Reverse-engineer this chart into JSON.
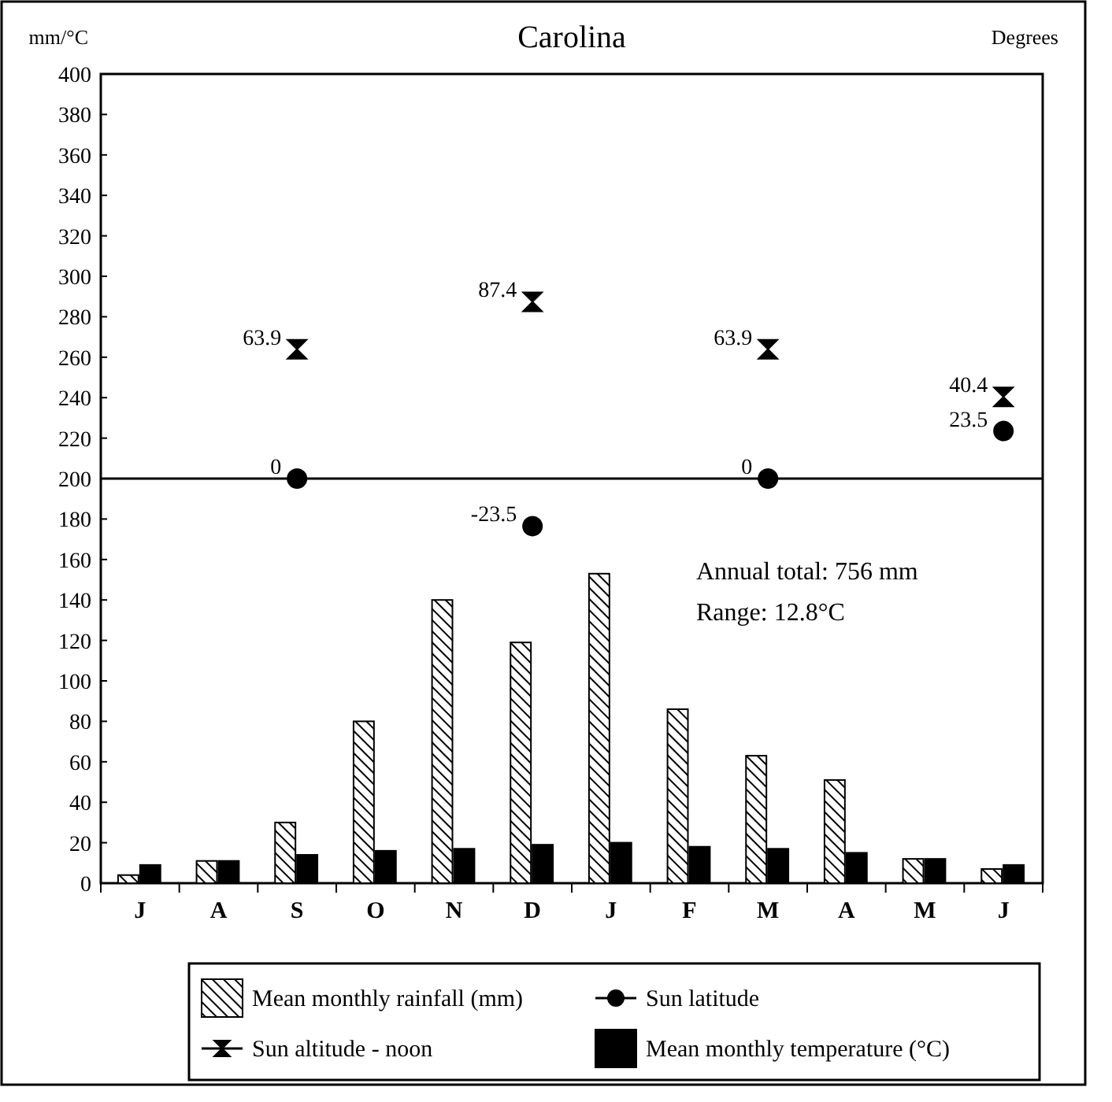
{
  "chart_data": {
    "type": "bar",
    "title": "Carolina",
    "ylabel": "mm/°C",
    "y2label": "Degrees",
    "categories": [
      "J",
      "A",
      "S",
      "O",
      "N",
      "D",
      "J",
      "F",
      "M",
      "A",
      "M",
      "J"
    ],
    "series": [
      {
        "name": "Mean monthly rainfall (mm)",
        "color": "#000000",
        "values": [
          4,
          11,
          30,
          80,
          140,
          119,
          153,
          86,
          63,
          51,
          12,
          7
        ]
      },
      {
        "name": "Sun latitude",
        "type": "scatter",
        "axis": "y2",
        "marker": "circle",
        "color": "#000000",
        "values": [
          null,
          null,
          0,
          null,
          null,
          -23.5,
          null,
          null,
          0,
          null,
          null,
          23.5
        ],
        "value_labels": [
          null,
          null,
          "0",
          null,
          null,
          "-23.5",
          null,
          null,
          "0",
          null,
          null,
          "23.5"
        ]
      },
      {
        "name": "Sun altitude - noon",
        "type": "scatter",
        "axis": "y2",
        "marker": "diamond",
        "color": "#000000",
        "values": [
          null,
          null,
          63.9,
          null,
          null,
          87.4,
          null,
          null,
          63.9,
          null,
          null,
          40.4
        ],
        "value_labels": [
          null,
          null,
          "63.9",
          null,
          null,
          "87.4",
          null,
          null,
          "63.9",
          null,
          null,
          "40.4"
        ]
      },
      {
        "name": "Mean monthly temperature (°C)",
        "color": "#000000",
        "values": [
          9,
          11,
          14,
          16,
          17,
          19,
          20,
          18,
          17,
          15,
          12,
          9
        ]
      }
    ],
    "ylim": [
      0,
      400
    ],
    "yticks": [
      0,
      20,
      40,
      60,
      80,
      100,
      120,
      140,
      160,
      180,
      200,
      220,
      240,
      260,
      280,
      300,
      320,
      340,
      360,
      380,
      400
    ],
    "y2lim": [
      -200,
      200
    ],
    "ref_lines": [
      {
        "axis": "y2",
        "value": 0,
        "color": "#000000"
      }
    ],
    "annotations": [
      "Annual total: 756 mm",
      "Range: 12.8°C"
    ],
    "legend": "bottom",
    "grid": false
  }
}
